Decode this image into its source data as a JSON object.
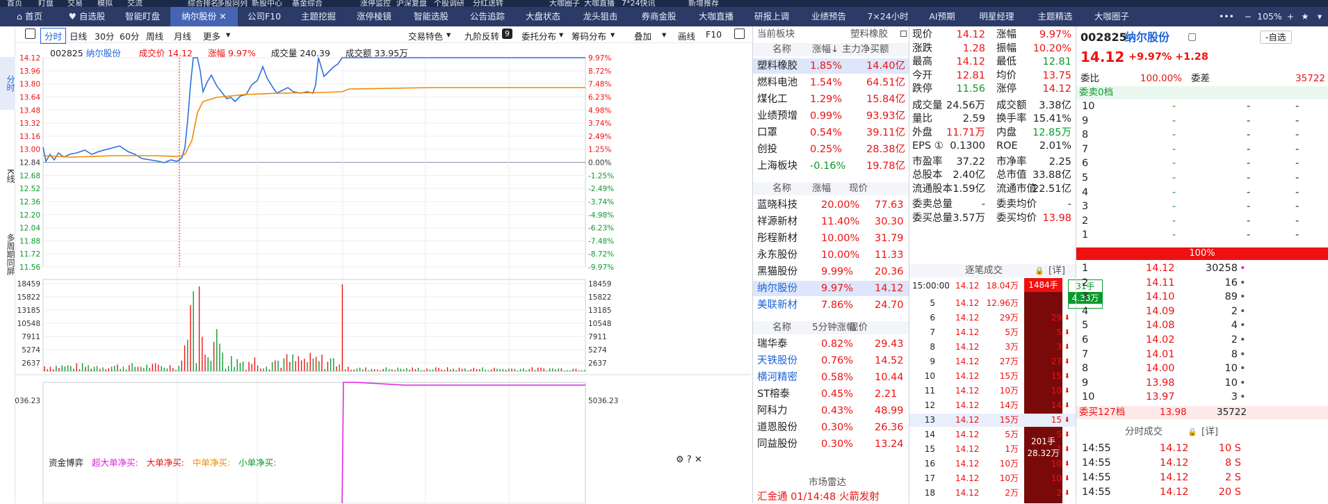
{
  "top_menu": [
    "首页",
    "盯盘",
    "交易",
    "模拟",
    "交流",
    "",
    "综合排名",
    "多股同列",
    "新股中心",
    "基金综合",
    "",
    "涨停监控",
    "沪深复盘",
    "个股调研",
    "分红送转",
    "",
    "大咖圈子",
    "大咖直播",
    "7*24快讯",
    "",
    "新增推荐"
  ],
  "tabs": [
    {
      "label": "首页",
      "icon": "home-icon"
    },
    {
      "label": "自选股",
      "icon": "heart-icon"
    },
    {
      "label": "智能盯盘"
    },
    {
      "label": "纳尔股份",
      "active": true,
      "closable": true
    },
    {
      "label": "公司F10"
    },
    {
      "label": "主题挖掘"
    },
    {
      "label": "涨停棱镜"
    },
    {
      "label": "智能选股"
    },
    {
      "label": "公告追踪"
    },
    {
      "label": "大盘状态"
    },
    {
      "label": "龙头狙击"
    },
    {
      "label": "券商金股"
    },
    {
      "label": "大咖直播"
    },
    {
      "label": "研报上调"
    },
    {
      "label": "业绩预告"
    },
    {
      "label": "7×24小时"
    },
    {
      "label": "AI预期"
    },
    {
      "label": "明星经理"
    },
    {
      "label": "主题精选"
    },
    {
      "label": "大咖圈子"
    }
  ],
  "tabbar_right": {
    "more": "•••",
    "minus": "−",
    "zoom": "105%",
    "plus": "+"
  },
  "left_side": [
    "分时",
    "K线",
    "多周期同屏"
  ],
  "toolbar": {
    "items": [
      "分时",
      "日线",
      "30分",
      "60分",
      "周线",
      "月线",
      "更多"
    ],
    "right": [
      "交易特色",
      "九阶反转",
      "委托分布",
      "筹码分布",
      "叠加",
      "画线",
      "F10"
    ],
    "badge": "9"
  },
  "chart_info": {
    "code": "002825",
    "name": "纳尔股份",
    "price_label": "成交价",
    "price": "14.12",
    "chg_label": "涨幅",
    "chg": "9.97%",
    "vol_label": "成交量",
    "vol": "240.39",
    "amt_label": "成交额",
    "amt": "33.95万"
  },
  "chart_data": {
    "type": "line",
    "series": [
      {
        "name": "price"
      },
      {
        "name": "avg"
      }
    ],
    "price_ticks": [
      "14.12",
      "13.96",
      "13.80",
      "13.64",
      "13.48",
      "13.32",
      "13.16",
      "13.00",
      "12.84",
      "12.68",
      "12.52",
      "12.36",
      "12.20",
      "12.04",
      "11.88",
      "11.72",
      "11.56"
    ],
    "pct_ticks": [
      "9.97%",
      "8.72%",
      "7.48%",
      "6.23%",
      "4.98%",
      "3.74%",
      "2.49%",
      "1.25%",
      "0.00%",
      "-1.25%",
      "-2.49%",
      "-3.74%",
      "-4.98%",
      "-6.23%",
      "-7.48%",
      "-8.72%",
      "-9.97%"
    ],
    "vol_ticks": [
      "18459",
      "15822",
      "13185",
      "10548",
      "7911",
      "5274",
      "2637"
    ],
    "fund_flow_labels": [
      "资金博弈",
      "超大单净买:",
      "大单净买:",
      "中单净买:",
      "小单净买:"
    ],
    "fund_tick": "5036.23"
  },
  "sector": {
    "header": [
      "当前板块",
      "塑料橡胶"
    ],
    "col_head": [
      "名称",
      "涨幅↓",
      "主力净买额"
    ],
    "rows": [
      [
        "塑料橡胶",
        "1.85%",
        "14.40亿"
      ],
      [
        "燃料电池",
        "1.54%",
        "64.51亿"
      ],
      [
        "煤化工",
        "1.29%",
        "15.84亿"
      ],
      [
        "业绩预增",
        "0.99%",
        "93.93亿"
      ],
      [
        "口罩",
        "0.54%",
        "39.11亿"
      ],
      [
        "创投",
        "0.25%",
        "28.38亿"
      ],
      [
        "上海板块",
        "-0.16%",
        "19.78亿"
      ]
    ]
  },
  "peers": {
    "col_head": [
      "名称",
      "涨幅",
      "现价"
    ],
    "rows": [
      [
        "蓝晓科技",
        "20.00%",
        "77.63"
      ],
      [
        "祥源新材",
        "11.40%",
        "30.30"
      ],
      [
        "彤程新材",
        "10.00%",
        "31.79"
      ],
      [
        "永东股份",
        "10.00%",
        "11.33"
      ],
      [
        "黑猫股份",
        "9.99%",
        "20.36"
      ],
      [
        "纳尔股份",
        "9.97%",
        "14.12"
      ],
      [
        "美联新材",
        "7.86%",
        "24.70"
      ]
    ]
  },
  "speed": {
    "col_head": [
      "名称",
      "5分钟涨幅",
      "现价"
    ],
    "rows": [
      [
        "瑞华泰",
        "0.82%",
        "29.43"
      ],
      [
        "天铁股份",
        "0.76%",
        "14.52"
      ],
      [
        "横河精密",
        "0.58%",
        "10.44"
      ],
      [
        "ST榕泰",
        "0.45%",
        "2.21"
      ],
      [
        "阿科力",
        "0.43%",
        "48.99"
      ],
      [
        "道恩股份",
        "0.30%",
        "26.36"
      ],
      [
        "同益股份",
        "0.30%",
        "13.24"
      ]
    ]
  },
  "radar": {
    "title": "市场雷达",
    "row": "汇金通  01/14:48  火箭发射"
  },
  "quote": [
    [
      "现价",
      "14.12",
      "涨幅",
      "9.97%"
    ],
    [
      "涨跌",
      "1.28",
      "振幅",
      "10.20%"
    ],
    [
      "最高",
      "14.12",
      "最低",
      "12.81"
    ],
    [
      "今开",
      "12.81",
      "均价",
      "13.75"
    ],
    [
      "跌停",
      "11.56",
      "涨停",
      "14.12"
    ],
    [
      "成交量",
      "24.56万",
      "成交额",
      "3.38亿"
    ],
    [
      "量比",
      "2.59",
      "换手率",
      "15.41%"
    ],
    [
      "外盘",
      "11.71万",
      "内盘",
      "12.85万"
    ],
    [
      "EPS ①",
      "0.1300",
      "ROE",
      "2.01%"
    ],
    [
      "市盈率",
      "37.22",
      "市净率",
      "2.25"
    ],
    [
      "总股本",
      "2.40亿",
      "总市值",
      "33.88亿"
    ],
    [
      "流通股本",
      "1.59亿",
      "流通市值",
      "22.51亿"
    ],
    [
      "委卖总量",
      "-",
      "委卖均价",
      "-"
    ],
    [
      "委买总量",
      "3.57万",
      "委买均价",
      "13.98"
    ]
  ],
  "ticks": {
    "title": "逐笔成交",
    "detail": "[详]",
    "rows": [
      [
        "15:00:00",
        "14.12",
        "18.04万",
        "31手",
        "4.38万"
      ],
      [
        "5",
        "14.12",
        "12.96万",
        ""
      ],
      [
        "6",
        "14.12",
        "29万",
        "29"
      ],
      [
        "7",
        "14.12",
        "5万",
        "5"
      ],
      [
        "8",
        "14.12",
        "3万",
        "3"
      ],
      [
        "9",
        "14.12",
        "27万",
        "27"
      ],
      [
        "10",
        "14.12",
        "15万",
        "15"
      ],
      [
        "11",
        "14.12",
        "10万",
        "10"
      ],
      [
        "12",
        "14.12",
        "14万",
        "14"
      ],
      [
        "13",
        "14.12",
        "15万",
        "15"
      ],
      [
        "14",
        "14.12",
        "5万",
        "5"
      ],
      [
        "15",
        "14.12",
        "1万",
        "1"
      ],
      [
        "16",
        "14.12",
        "10万",
        "10"
      ],
      [
        "17",
        "14.12",
        "10万",
        "10"
      ],
      [
        "18",
        "14.12",
        "2万",
        "2"
      ]
    ],
    "block_top": "1484手",
    "block_mid": [
      "201手",
      "28.32万"
    ]
  },
  "stock": {
    "code": "002825",
    "name": "纳尔股份",
    "price": "14.12",
    "chg": "+9.97%",
    "diff": "+1.28",
    "add_btn": "-自选",
    "wb_label": "委比",
    "wb": "100.00%",
    "wc_label": "委差",
    "wc": "35722",
    "sell_label": "委卖0档",
    "buy_label": "委买127档",
    "buy_price": "13.98",
    "buy_vol": "35722",
    "bar_pct": "100%"
  },
  "sell_levels": [
    "10",
    "9",
    "8",
    "7",
    "6",
    "5",
    "4",
    "3",
    "2",
    "1"
  ],
  "buy_levels": [
    [
      "1",
      "14.12",
      "30258"
    ],
    [
      "2",
      "14.11",
      "16"
    ],
    [
      "3",
      "14.10",
      "89"
    ],
    [
      "4",
      "14.09",
      "2"
    ],
    [
      "5",
      "14.08",
      "4"
    ],
    [
      "6",
      "14.02",
      "2"
    ],
    [
      "7",
      "14.01",
      "8"
    ],
    [
      "8",
      "14.00",
      "10"
    ],
    [
      "9",
      "13.98",
      "10"
    ],
    [
      "10",
      "13.97",
      "3"
    ]
  ],
  "minute_trades": {
    "title": "分时成交",
    "detail": "[详]",
    "rows": [
      [
        "14:55",
        "14.12",
        "10 S"
      ],
      [
        "14:55",
        "14.12",
        "8 S"
      ],
      [
        "14:55",
        "14.12",
        "2 S"
      ],
      [
        "14:55",
        "14.12",
        "20 S"
      ]
    ]
  }
}
